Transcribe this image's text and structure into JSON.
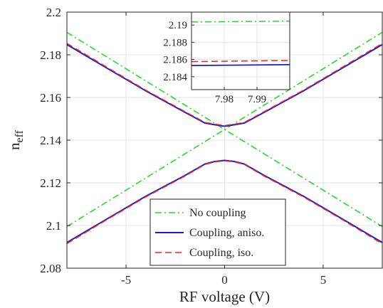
{
  "chart_data": [
    {
      "type": "line",
      "title": "",
      "xlabel": "RF voltage (V)",
      "ylabel": "n",
      "ylabel_sub": "eff",
      "xlim": [
        -8,
        8
      ],
      "ylim": [
        2.08,
        2.2
      ],
      "xticks": [
        -5,
        0,
        5
      ],
      "xtick_labels": [
        "-5",
        "0",
        "5"
      ],
      "yticks": [
        2.08,
        2.1,
        2.12,
        2.14,
        2.16,
        2.18,
        2.2
      ],
      "ytick_labels": [
        "2.08",
        "2.1",
        "2.12",
        "2.14",
        "2.16",
        "2.18",
        "2.2"
      ],
      "grid": true,
      "legend_position": "bottom-center",
      "colors": {
        "no_coupling": "#22dd22",
        "aniso": "#1a1adc",
        "iso": "#ee2222",
        "grid": "#e3e3e3",
        "axis": "#262626"
      },
      "series": [
        {
          "name": "No coupling",
          "style": "dash-dot",
          "color": "#22dd22",
          "x": [
            -8,
            8
          ],
          "y": [
            2.1905,
            2.0995
          ]
        },
        {
          "name": "",
          "style": "dash-dot",
          "color": "#22dd22",
          "x": [
            -8,
            8
          ],
          "y": [
            2.0995,
            2.1905
          ]
        },
        {
          "name": "Coupling, aniso.",
          "style": "solid",
          "color": "#1a1adc",
          "x": [
            -8,
            -6,
            -4,
            -2,
            -1,
            -0.5,
            0,
            0.5,
            1,
            2,
            4,
            6,
            8
          ],
          "y": [
            2.1848,
            2.1739,
            2.1631,
            2.153,
            2.148,
            2.1472,
            2.1465,
            2.1472,
            2.148,
            2.153,
            2.1631,
            2.1739,
            2.1848
          ]
        },
        {
          "name": "",
          "style": "solid",
          "color": "#1a1adc",
          "x": [
            -8,
            -6,
            -4,
            -2,
            -1,
            -0.5,
            0,
            0.5,
            1,
            2,
            4,
            6,
            8
          ],
          "y": [
            2.092,
            2.1029,
            2.1137,
            2.1235,
            2.1288,
            2.13,
            2.1305,
            2.13,
            2.1288,
            2.1235,
            2.1137,
            2.1029,
            2.092
          ]
        },
        {
          "name": "Coupling, iso.",
          "style": "dashed",
          "color": "#ee2222",
          "x": [
            -8,
            -6,
            -4,
            -2,
            -1,
            -0.5,
            0,
            0.5,
            1,
            2,
            4,
            6,
            8
          ],
          "y": [
            2.1853,
            2.1743,
            2.1634,
            2.1533,
            2.1483,
            2.1475,
            2.1468,
            2.1475,
            2.1483,
            2.1533,
            2.1634,
            2.1743,
            2.1853
          ]
        },
        {
          "name": "",
          "style": "dashed",
          "color": "#ee2222",
          "x": [
            -8,
            -6,
            -4,
            -2,
            -1,
            -0.5,
            0,
            0.5,
            1,
            2,
            4,
            6,
            8
          ],
          "y": [
            2.0915,
            2.1026,
            2.1134,
            2.1232,
            2.1286,
            2.1298,
            2.1303,
            2.1298,
            2.1286,
            2.1232,
            2.1134,
            2.1026,
            2.0915
          ]
        }
      ]
    },
    {
      "type": "line",
      "title": "",
      "xlabel": "",
      "ylabel": "",
      "xlim": [
        7.97,
        8.0
      ],
      "ylim": [
        2.1825,
        2.1915
      ],
      "xticks": [
        7.98,
        7.99
      ],
      "xtick_labels": [
        "7.98",
        "7.99"
      ],
      "yticks": [
        2.184,
        2.186,
        2.188,
        2.19
      ],
      "ytick_labels": [
        "2.184",
        "2.186",
        "2.188",
        "2.19"
      ],
      "grid": true,
      "series": [
        {
          "name": "No coupling",
          "style": "dash-dot",
          "color": "#22dd22",
          "x": [
            7.97,
            8.0
          ],
          "y": [
            2.19035,
            2.19045
          ]
        },
        {
          "name": "Coupling, iso.",
          "style": "dashed",
          "color": "#ee2222",
          "x": [
            7.97,
            8.0
          ],
          "y": [
            2.18575,
            2.18588
          ]
        },
        {
          "name": "Coupling, aniso.",
          "style": "solid",
          "color": "#1a1adc",
          "x": [
            7.97,
            8.0
          ],
          "y": [
            2.1853,
            2.1854
          ]
        }
      ]
    }
  ],
  "legend": {
    "items": [
      {
        "label": "No coupling",
        "style": "dash-dot",
        "color": "#22dd22"
      },
      {
        "label": "Coupling, aniso.",
        "style": "solid",
        "color": "#1a1adc"
      },
      {
        "label": "Coupling, iso.",
        "style": "dashed",
        "color": "#ee2222"
      }
    ]
  }
}
